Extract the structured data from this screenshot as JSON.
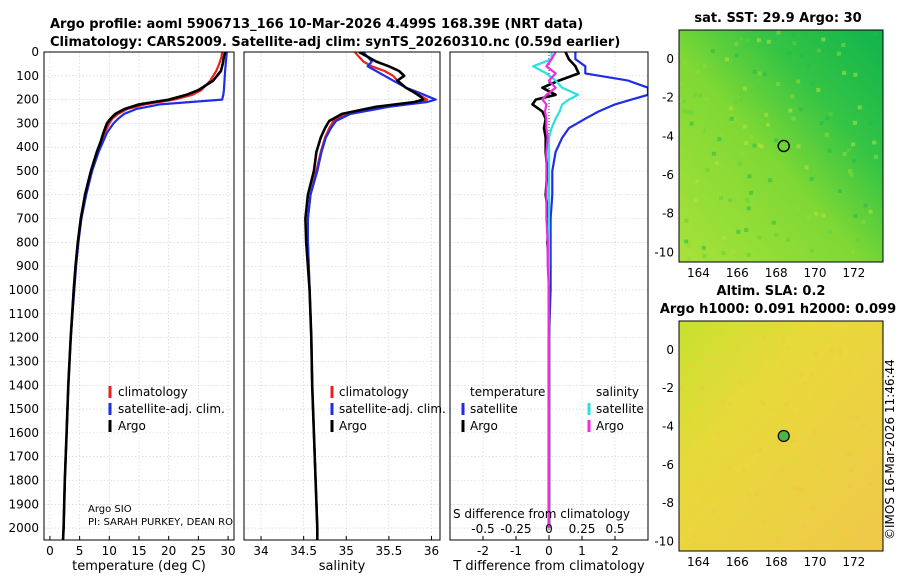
{
  "header": {
    "line1": "Argo profile: aoml 5906713_166 10-Mar-2026 4.499S 168.39E (NRT data)",
    "line2": "Climatology: CARS2009. Satellite-adj clim: synTS_20260310.nc (0.59d earlier)"
  },
  "colors": {
    "climatology": "#e8231c",
    "satellite": "#1f2ee6",
    "argo": "#000000",
    "salinity_satellite": "#2be0e0",
    "salinity_argo": "#f02ae0",
    "grid": "#cccccc"
  },
  "chart_data": [
    {
      "type": "line",
      "id": "temperature",
      "xlabel": "temperature (deg C)",
      "xlim": [
        -1,
        31
      ],
      "xticks": [
        "0",
        "5",
        "10",
        "15",
        "20",
        "25",
        "30"
      ],
      "xtick_values": [
        0,
        5,
        10,
        15,
        20,
        25,
        30
      ],
      "ylim": [
        0,
        2050
      ],
      "yticks": [
        "0",
        "100",
        "200",
        "300",
        "400",
        "500",
        "600",
        "700",
        "800",
        "900",
        "1000",
        "1100",
        "1200",
        "1300",
        "1400",
        "1500",
        "1600",
        "1700",
        "1800",
        "1900",
        "2000"
      ],
      "ytick_values": [
        0,
        100,
        200,
        300,
        400,
        500,
        600,
        700,
        800,
        900,
        1000,
        1100,
        1200,
        1300,
        1400,
        1500,
        1600,
        1700,
        1800,
        1900,
        2000
      ],
      "legend": [
        "climatology",
        "satellite-adj. clim.",
        "Argo"
      ],
      "depth": [
        0,
        20,
        50,
        80,
        120,
        160,
        180,
        200,
        220,
        240,
        260,
        280,
        300,
        340,
        380,
        420,
        500,
        600,
        700,
        800,
        900,
        1000,
        1200,
        1400,
        1600,
        1800,
        2000,
        2050
      ],
      "series": [
        {
          "name": "climatology",
          "color_key": "climatology",
          "values": [
            29.0,
            28.9,
            28.5,
            28.0,
            27.0,
            25.5,
            24.0,
            21.0,
            16.0,
            13.0,
            11.5,
            10.5,
            10.0,
            9.2,
            8.6,
            8.0,
            7.0,
            6.0,
            5.2,
            4.7,
            4.3,
            4.0,
            3.5,
            3.1,
            2.8,
            2.5,
            2.3,
            2.2
          ]
        },
        {
          "name": "satellite-adj. clim.",
          "color_key": "satellite",
          "values": [
            29.8,
            29.7,
            29.6,
            29.5,
            29.4,
            29.3,
            29.2,
            29.0,
            18.5,
            14.5,
            12.5,
            11.5,
            10.7,
            9.6,
            8.9,
            8.2,
            7.1,
            6.1,
            5.3,
            4.8,
            4.4,
            4.1,
            3.5,
            3.1,
            2.8,
            2.5,
            2.3,
            2.2
          ]
        },
        {
          "name": "Argo",
          "color_key": "argo",
          "values": [
            29.5,
            29.3,
            29.1,
            28.8,
            27.5,
            25.0,
            23.0,
            20.0,
            15.0,
            12.5,
            11.0,
            10.2,
            9.6,
            9.0,
            8.5,
            7.9,
            6.9,
            5.9,
            5.2,
            4.7,
            4.3,
            4.0,
            3.5,
            3.1,
            2.8,
            2.5,
            2.3,
            2.2
          ]
        }
      ],
      "annotations": [
        "Argo SIO",
        "PI: SARAH PURKEY, DEAN RO"
      ]
    },
    {
      "type": "line",
      "id": "salinity",
      "xlabel": "salinity",
      "xlim": [
        33.8,
        36.1
      ],
      "xticks": [
        "34",
        "34.5",
        "35",
        "35.5",
        "36"
      ],
      "xtick_values": [
        34,
        34.5,
        35,
        35.5,
        36
      ],
      "ylim": [
        0,
        2050
      ],
      "legend": [
        "climatology",
        "satellite-adj. clim.",
        "Argo"
      ],
      "depth": [
        0,
        20,
        40,
        60,
        80,
        100,
        120,
        150,
        170,
        190,
        200,
        210,
        230,
        260,
        290,
        320,
        360,
        420,
        500,
        600,
        700,
        800,
        900,
        1000,
        1200,
        1400,
        1600,
        1800,
        2000,
        2050
      ],
      "series": [
        {
          "name": "climatology",
          "color_key": "climatology",
          "values": [
            35.1,
            35.15,
            35.2,
            35.3,
            35.45,
            35.55,
            35.6,
            35.7,
            35.8,
            35.9,
            35.95,
            35.85,
            35.4,
            35.0,
            34.85,
            34.8,
            34.75,
            34.7,
            34.65,
            34.58,
            34.55,
            34.55,
            34.56,
            34.57,
            34.59,
            34.6,
            34.62,
            34.64,
            34.66,
            34.66
          ]
        },
        {
          "name": "satellite-adj. clim.",
          "color_key": "satellite",
          "values": [
            35.2,
            35.25,
            35.3,
            35.25,
            35.35,
            35.45,
            35.55,
            35.7,
            35.85,
            35.98,
            36.05,
            35.95,
            35.5,
            35.05,
            34.88,
            34.82,
            34.76,
            34.71,
            34.66,
            34.58,
            34.55,
            34.55,
            34.56,
            34.57,
            34.59,
            34.6,
            34.62,
            34.64,
            34.66,
            34.66
          ]
        },
        {
          "name": "Argo",
          "color_key": "argo",
          "values": [
            35.15,
            35.25,
            35.35,
            35.5,
            35.62,
            35.68,
            35.6,
            35.7,
            35.8,
            35.88,
            35.9,
            35.8,
            35.35,
            34.95,
            34.8,
            34.75,
            34.7,
            34.65,
            34.62,
            34.55,
            34.52,
            34.53,
            34.55,
            34.57,
            34.59,
            34.6,
            34.62,
            34.64,
            34.66,
            34.66
          ]
        }
      ]
    },
    {
      "type": "line",
      "id": "difference",
      "xlabel": "T difference from climatology",
      "xlim": [
        -3,
        3
      ],
      "xticks": [
        "-2",
        "-1",
        "0",
        "1",
        "2"
      ],
      "xtick_values": [
        -2,
        -1,
        0,
        1,
        2
      ],
      "top_axis_label": "S difference from climatology",
      "top_xticks": [
        "-0.5",
        "-0.25",
        "0",
        "0.25",
        "0.5"
      ],
      "top_xtick_values": [
        -0.5,
        -0.25,
        0,
        0.25,
        0.5
      ],
      "top_xlim": [
        -0.75,
        0.75
      ],
      "ylim": [
        0,
        2050
      ],
      "legend_titles": [
        "temperature",
        "salinity"
      ],
      "legend_left": [
        "satellite",
        "Argo"
      ],
      "legend_right": [
        "satellite",
        "Argo"
      ],
      "depth": [
        0,
        30,
        60,
        90,
        120,
        150,
        180,
        200,
        220,
        250,
        280,
        320,
        360,
        420,
        500,
        600,
        700,
        800,
        900,
        1000,
        1200,
        1400,
        1600,
        1800,
        2000
      ],
      "series": [
        {
          "name": "temperature satellite",
          "color_key": "satellite",
          "axis": "T",
          "values": [
            0.8,
            0.8,
            1.1,
            1.1,
            2.4,
            3.0,
            3.0,
            2.5,
            2.0,
            1.5,
            1.1,
            0.6,
            0.4,
            0.2,
            0.1,
            0.1,
            0.05,
            0.05,
            0.05,
            0.05,
            0.0,
            0.0,
            0.0,
            0.0,
            0.0
          ]
        },
        {
          "name": "temperature Argo",
          "color_key": "argo",
          "axis": "T",
          "values": [
            0.5,
            0.6,
            0.8,
            0.9,
            0.3,
            -0.2,
            0.2,
            -0.4,
            -0.5,
            -0.2,
            -0.1,
            -0.15,
            -0.1,
            -0.1,
            -0.05,
            -0.1,
            0.0,
            -0.05,
            0.0,
            0.0,
            0.0,
            0.0,
            0.0,
            0.0,
            0.0
          ]
        },
        {
          "name": "salinity satellite",
          "color_key": "salinity_satellite",
          "axis": "S",
          "values": [
            0.02,
            0.02,
            -0.12,
            -0.02,
            0.05,
            0.1,
            0.22,
            0.15,
            0.1,
            0.08,
            0.05,
            0.02,
            0.0,
            0.0,
            0.0,
            0.0,
            0.0,
            0.0,
            0.0,
            0.0,
            0.0,
            0.0,
            0.0,
            0.0,
            0.0
          ]
        },
        {
          "name": "salinity Argo",
          "color_key": "salinity_argo",
          "axis": "S",
          "values": [
            0.05,
            0.02,
            -0.02,
            0.05,
            0.0,
            0.05,
            -0.02,
            -0.05,
            -0.02,
            -0.03,
            -0.02,
            -0.02,
            -0.01,
            -0.02,
            -0.02,
            -0.02,
            -0.02,
            -0.01,
            -0.01,
            0.0,
            0.0,
            0.0,
            0.0,
            0.0,
            0.0
          ]
        }
      ]
    },
    {
      "type": "heatmap",
      "id": "sst_map",
      "title": "sat. SST: 29.9 Argo: 30",
      "xticks": [
        "164",
        "166",
        "168",
        "170",
        "172"
      ],
      "xtick_values": [
        164,
        166,
        168,
        170,
        172
      ],
      "yticks": [
        "0",
        "-2",
        "-4",
        "-6",
        "-8",
        "-10"
      ],
      "ytick_values": [
        0,
        -2,
        -4,
        -6,
        -8,
        -10
      ],
      "xlim": [
        163,
        173.5
      ],
      "ylim": [
        -10.5,
        1.5
      ],
      "argo_marker": [
        168.39,
        -4.499
      ]
    },
    {
      "type": "heatmap",
      "id": "sla_map",
      "title_line1": "Altim. SLA: 0.2",
      "title_line2": "Argo h1000: 0.091 h2000: 0.099",
      "xticks": [
        "164",
        "166",
        "168",
        "170",
        "172"
      ],
      "xtick_values": [
        164,
        166,
        168,
        170,
        172
      ],
      "yticks": [
        "0",
        "-2",
        "-4",
        "-6",
        "-8",
        "-10"
      ],
      "ytick_values": [
        0,
        -2,
        -4,
        -6,
        -8,
        -10
      ],
      "xlim": [
        163,
        173.5
      ],
      "ylim": [
        -10.5,
        1.5
      ],
      "argo_marker": [
        168.39,
        -4.499
      ]
    }
  ],
  "footer": {
    "watermark": "©IMOS 16-Mar-2026 11:46:44"
  }
}
